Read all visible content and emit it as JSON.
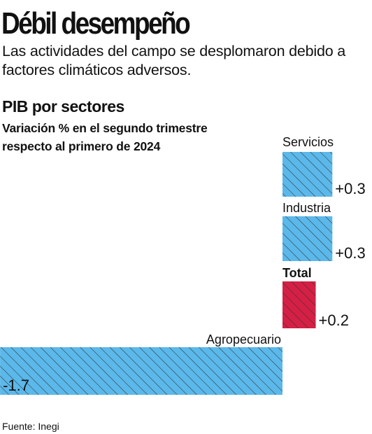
{
  "headline": "Débil desempeño",
  "deck": "Las actividades del campo se desplomaron debido a factores climáticos adversos.",
  "source": "Fuente: Inegi",
  "colors": {
    "sector": "#5bb8ea",
    "total": "#d51f45",
    "hatch": "#333333"
  },
  "chart_data": {
    "type": "bar",
    "orientation": "horizontal",
    "title": "PIB por sectores",
    "subtitle": "Variación % en el segundo trimestre respecto al primero de 2024",
    "categories": [
      "Servicios",
      "Industria",
      "Total",
      "Agropecuario"
    ],
    "values": [
      0.3,
      0.3,
      0.2,
      -1.7
    ],
    "value_labels": [
      "+0.3",
      "+0.3",
      "+0.2",
      "-1.7"
    ],
    "highlight": "Total",
    "grid": false,
    "legend": "none"
  }
}
